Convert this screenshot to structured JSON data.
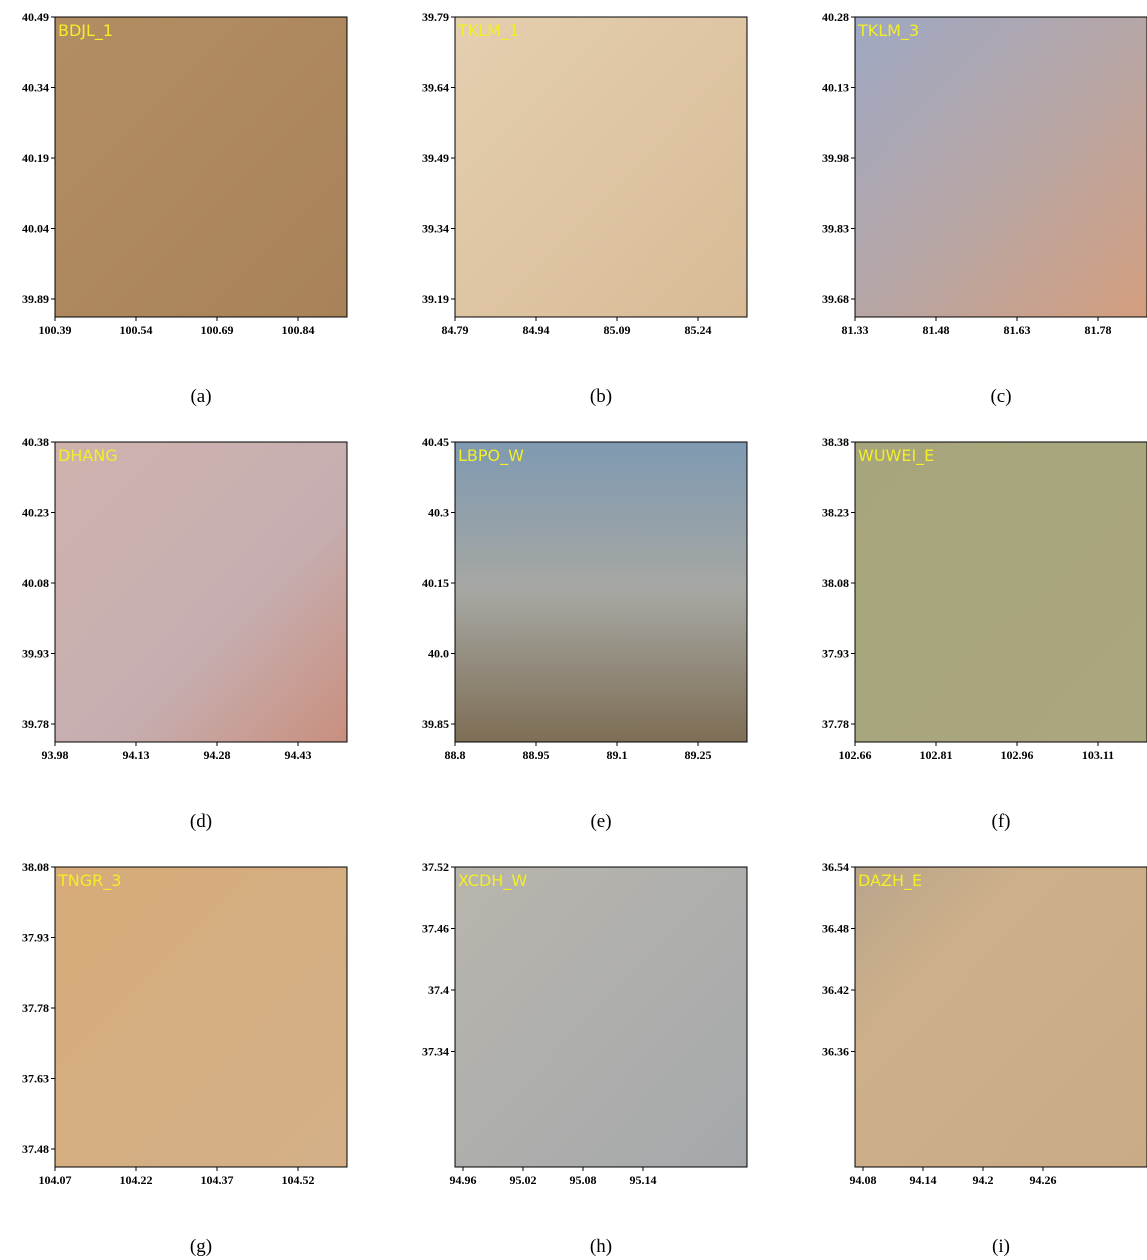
{
  "panels": [
    {
      "label": "BDJL_1",
      "caption": "(a)",
      "yticks": [
        "40.49",
        "40.34",
        "40.19",
        "40.04",
        "39.89"
      ],
      "xticks": [
        "100.39",
        "100.54",
        "100.69",
        "100.84"
      ]
    },
    {
      "label": "TKLM_1",
      "caption": "(b)",
      "yticks": [
        "39.79",
        "39.64",
        "39.49",
        "39.34",
        "39.19"
      ],
      "xticks": [
        "84.79",
        "84.94",
        "85.09",
        "85.24"
      ]
    },
    {
      "label": "TKLM_3",
      "caption": "(c)",
      "yticks": [
        "40.28",
        "40.13",
        "39.98",
        "39.83",
        "39.68"
      ],
      "xticks": [
        "81.33",
        "81.48",
        "81.63",
        "81.78"
      ]
    },
    {
      "label": "DHANG",
      "caption": "(d)",
      "yticks": [
        "40.38",
        "40.23",
        "40.08",
        "39.93",
        "39.78"
      ],
      "xticks": [
        "93.98",
        "94.13",
        "94.28",
        "94.43"
      ]
    },
    {
      "label": "LBPO_W",
      "caption": "(e)",
      "yticks": [
        "40.45",
        "40.3",
        "40.15",
        "40.0",
        "39.85"
      ],
      "xticks": [
        "88.8",
        "88.95",
        "89.1",
        "89.25"
      ]
    },
    {
      "label": "WUWEI_E",
      "caption": "(f)",
      "yticks": [
        "38.38",
        "38.23",
        "38.08",
        "37.93",
        "37.78"
      ],
      "xticks": [
        "102.66",
        "102.81",
        "102.96",
        "103.11"
      ]
    },
    {
      "label": "TNGR_3",
      "caption": "(g)",
      "yticks": [
        "38.08",
        "37.93",
        "37.78",
        "37.63",
        "37.48"
      ],
      "xticks": [
        "104.07",
        "104.22",
        "104.37",
        "104.52"
      ]
    },
    {
      "label": "XCDH_W",
      "caption": "(h)",
      "yticks": [
        "37.52",
        "37.46",
        "37.4",
        "37.34"
      ],
      "xticks": [
        "94.96",
        "95.02",
        "95.08",
        "95.14"
      ]
    },
    {
      "label": "DAZH_E",
      "caption": "(i)",
      "yticks": [
        "36.54",
        "36.48",
        "36.42",
        "36.36"
      ],
      "xticks": [
        "94.08",
        "94.14",
        "94.2",
        "94.26"
      ]
    }
  ]
}
